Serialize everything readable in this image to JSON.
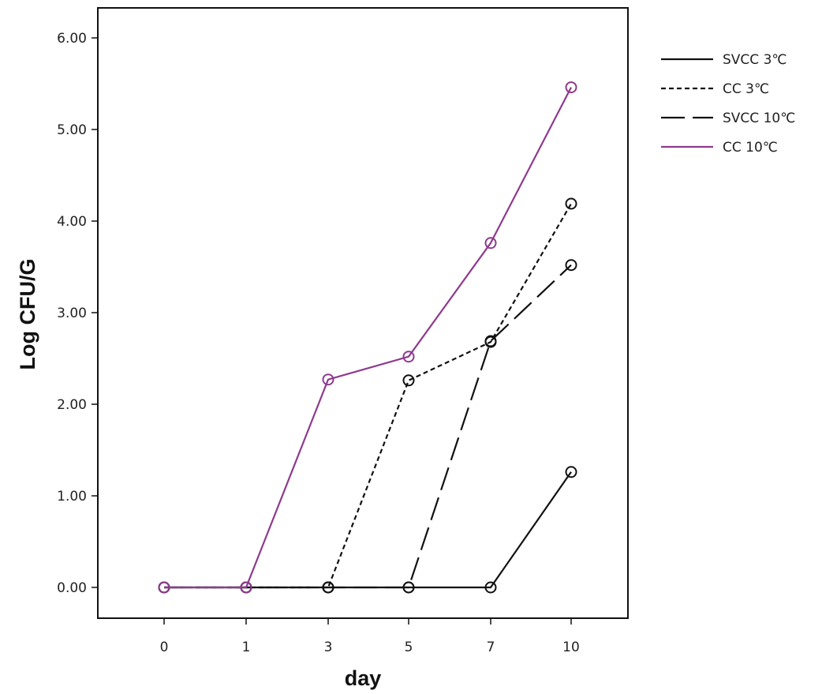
{
  "chart_data": {
    "type": "line",
    "title": "",
    "xlabel": "day",
    "ylabel": "Log CFU/G",
    "categories": [
      "0",
      "1",
      "3",
      "5",
      "7",
      "10"
    ],
    "y_ticks": [
      "0.00",
      "1.00",
      "2.00",
      "3.00",
      "4.00",
      "5.00",
      "6.00"
    ],
    "ylim": [
      -0.35,
      6.35
    ],
    "grid": false,
    "legend_position": "right",
    "series": [
      {
        "name": "SVCC 3℃",
        "color": "#111111",
        "dash": "solid",
        "values": [
          0,
          0,
          0,
          0,
          0,
          1.26
        ]
      },
      {
        "name": "CC 3℃",
        "color": "#111111",
        "dash": "dotted",
        "values": [
          0,
          0,
          0,
          2.26,
          2.68,
          4.19
        ]
      },
      {
        "name": "SVCC 10℃",
        "color": "#111111",
        "dash": "long-dash",
        "values": [
          0,
          0,
          0,
          0,
          2.69,
          3.52
        ]
      },
      {
        "name": "CC 10℃",
        "color": "#8e3a8e",
        "dash": "solid",
        "values": [
          0,
          0,
          2.27,
          2.52,
          3.76,
          5.46
        ]
      }
    ]
  }
}
